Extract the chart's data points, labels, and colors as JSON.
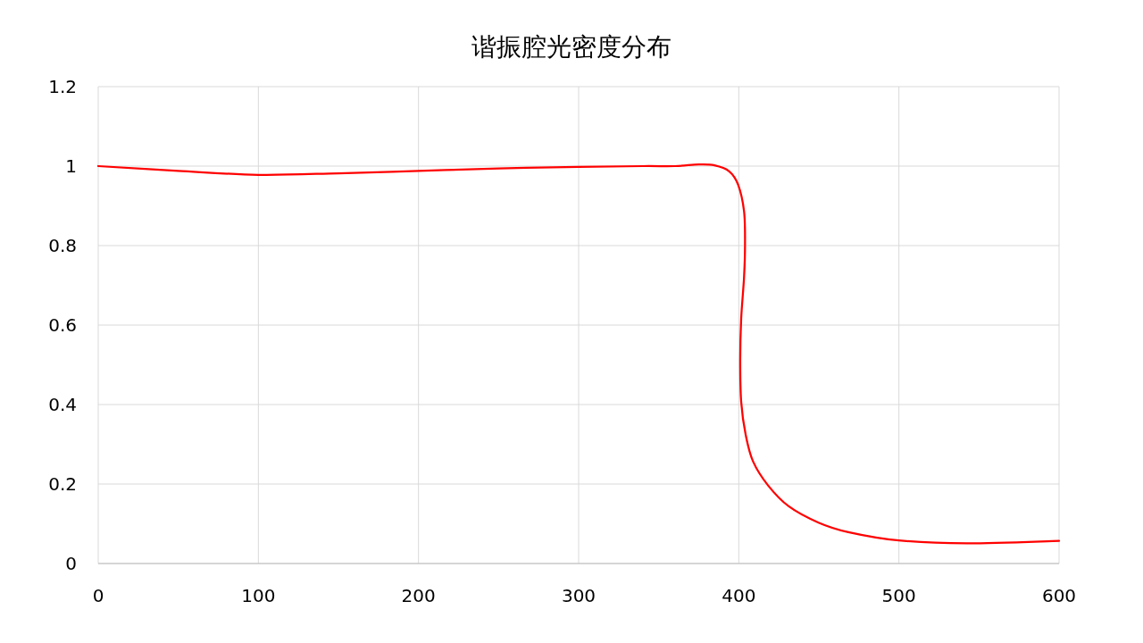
{
  "chart_data": {
    "type": "line",
    "title": "谐振腔光密度分布",
    "x": [
      0,
      50,
      100,
      150,
      200,
      250,
      300,
      340,
      360,
      375,
      384.8,
      394,
      399.6,
      403.3,
      403.9,
      403.3,
      401.5,
      400.9,
      401.5,
      404.3,
      408.9,
      418.2,
      431.2,
      449.8,
      468.4,
      500,
      542.6,
      600
    ],
    "series": [
      {
        "color": "#ff0000",
        "values": [
          1.0,
          0.988,
          0.978,
          0.982,
          0.988,
          0.994,
          0.998,
          1.0,
          1.0,
          1.004,
          1.002,
          0.987,
          0.953,
          0.886,
          0.804,
          0.721,
          0.616,
          0.512,
          0.407,
          0.324,
          0.257,
          0.197,
          0.144,
          0.103,
          0.079,
          0.058,
          0.051,
          0.057
        ]
      }
    ],
    "xlim": [
      0,
      600
    ],
    "ylim": [
      0,
      1.2
    ],
    "xticks": [
      0,
      100,
      200,
      300,
      400,
      500,
      600
    ],
    "yticks": [
      0,
      0.2,
      0.4,
      0.6,
      0.8,
      1,
      1.2
    ],
    "grid": true,
    "marker": "none",
    "line_style": "solid"
  }
}
